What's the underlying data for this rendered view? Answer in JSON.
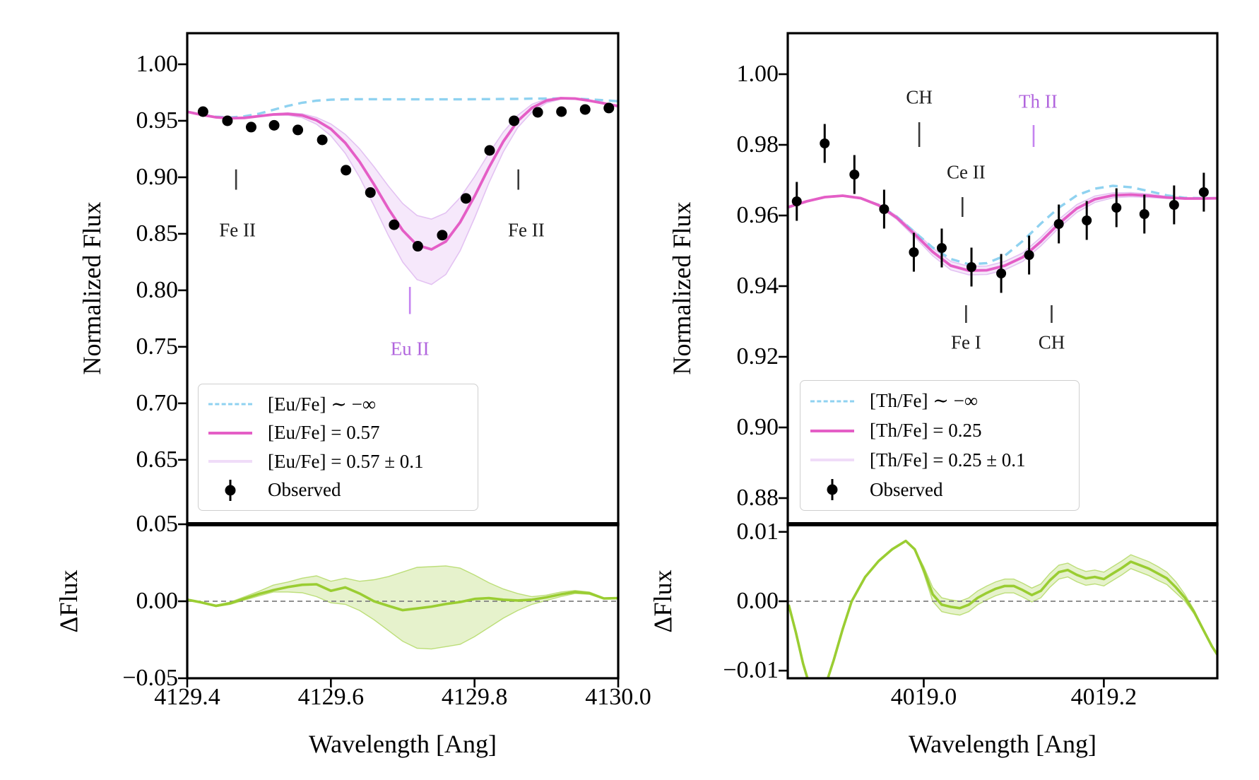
{
  "figure": {
    "background": "#ffffff"
  },
  "colors": {
    "no_element_line": "#8fd2f0",
    "best_fit_line": "#e45ec6",
    "band_fill": "#f6e8fb",
    "band_edge": "#e3c2f2",
    "observed": "#000000",
    "residual_line": "#9ACD32",
    "residual_fill": "rgba(154,205,50,0.25)",
    "zero_line": "#808080",
    "violet_annotation": "#b165dd"
  },
  "chart_data": [
    {
      "type": "line",
      "xlabel": "Wavelength [Ang]",
      "ylabel_main": "Normalized Flux",
      "ylabel_residual": "ΔFlux",
      "legend_position": "lower left",
      "xlim": [
        4129.4,
        4130.0
      ],
      "ylim_main": [
        0.593,
        1.0275
      ],
      "ylim_residual": [
        -0.05,
        0.05
      ],
      "x_ticks": [
        {
          "v": 4129.4,
          "label": "4129.4"
        },
        {
          "v": 4129.6,
          "label": "4129.6"
        },
        {
          "v": 4129.8,
          "label": "4129.8"
        },
        {
          "v": 4130.0,
          "label": "4130.0"
        }
      ],
      "y_ticks_main": [
        {
          "v": 1.0,
          "label": "1.00"
        },
        {
          "v": 0.95,
          "label": "0.95"
        },
        {
          "v": 0.9,
          "label": "0.90"
        },
        {
          "v": 0.85,
          "label": "0.85"
        },
        {
          "v": 0.8,
          "label": "0.80"
        },
        {
          "v": 0.75,
          "label": "0.75"
        },
        {
          "v": 0.7,
          "label": "0.70"
        },
        {
          "v": 0.65,
          "label": "0.65"
        }
      ],
      "y_ticks_residual": [
        {
          "v": 0.05,
          "label": "0.05"
        },
        {
          "v": 0.0,
          "label": "0.00"
        },
        {
          "v": -0.05,
          "label": "−0.05"
        }
      ],
      "legend": [
        {
          "label": "[Eu/Fe] ∼ −∞",
          "style": "dashed"
        },
        {
          "label": "[Eu/Fe] = 0.57",
          "style": "solid"
        },
        {
          "label": "[Eu/Fe] = 0.57 ± 0.1",
          "style": "band"
        },
        {
          "label": "Observed",
          "style": "marker"
        }
      ],
      "annotations": [
        {
          "label": "Fe II",
          "x": 4129.47,
          "label_y": 0.853,
          "tick_x": 4129.468,
          "tick_y1": 0.907,
          "tick_y2": 0.889,
          "color": "#1c1c1c",
          "tick_color": "#3a3a3a"
        },
        {
          "label": "Eu II",
          "x": 4129.71,
          "label_y": 0.748,
          "tick_x": 4129.71,
          "tick_y1": 0.803,
          "tick_y2": 0.779,
          "color": "#b165dd",
          "tick_color": "#c584f0"
        },
        {
          "label": "Fe II",
          "x": 4129.872,
          "label_y": 0.853,
          "tick_x": 4129.861,
          "tick_y1": 0.907,
          "tick_y2": 0.889,
          "color": "#1c1c1c",
          "tick_color": "#3a3a3a"
        }
      ],
      "series": {
        "model_x": [
          4129.4,
          4129.42,
          4129.44,
          4129.46,
          4129.48,
          4129.5,
          4129.52,
          4129.54,
          4129.56,
          4129.58,
          4129.6,
          4129.62,
          4129.64,
          4129.66,
          4129.68,
          4129.7,
          4129.72,
          4129.74,
          4129.76,
          4129.78,
          4129.8,
          4129.82,
          4129.84,
          4129.86,
          4129.88,
          4129.9,
          4129.92,
          4129.94,
          4129.96,
          4129.98,
          4130.0
        ],
        "no_element_y": [
          0.958,
          0.9555,
          0.9536,
          0.953,
          0.954,
          0.9563,
          0.9597,
          0.9632,
          0.966,
          0.9678,
          0.9687,
          0.969,
          0.9691,
          0.9691,
          0.969,
          0.969,
          0.969,
          0.969,
          0.969,
          0.969,
          0.9691,
          0.9692,
          0.9693,
          0.9694,
          0.9696,
          0.9697,
          0.9698,
          0.9696,
          0.969,
          0.9682,
          0.9673
        ],
        "best_fit_y": [
          0.958,
          0.9553,
          0.9531,
          0.9522,
          0.9526,
          0.9541,
          0.9556,
          0.9561,
          0.9548,
          0.9505,
          0.9428,
          0.9305,
          0.9138,
          0.8938,
          0.8722,
          0.853,
          0.84,
          0.8362,
          0.8432,
          0.8602,
          0.8832,
          0.9086,
          0.9316,
          0.9498,
          0.9615,
          0.9678,
          0.97,
          0.9697,
          0.9678,
          0.9654,
          0.963
        ],
        "band_upper_y": [
          0.958,
          0.9554,
          0.9533,
          0.9525,
          0.953,
          0.9546,
          0.9562,
          0.957,
          0.9562,
          0.953,
          0.9472,
          0.938,
          0.9252,
          0.9094,
          0.8922,
          0.8768,
          0.8662,
          0.863,
          0.8686,
          0.882,
          0.9005,
          0.9212,
          0.94,
          0.9548,
          0.9646,
          0.9693,
          0.9706,
          0.9699,
          0.9679,
          0.9654,
          0.963
        ],
        "band_lower_y": [
          0.958,
          0.9552,
          0.9529,
          0.9519,
          0.9522,
          0.9536,
          0.9549,
          0.955,
          0.9528,
          0.947,
          0.9368,
          0.9212,
          0.9,
          0.875,
          0.8485,
          0.825,
          0.8095,
          0.8052,
          0.814,
          0.835,
          0.864,
          0.895,
          0.9225,
          0.944,
          0.9578,
          0.9658,
          0.9692,
          0.9694,
          0.9677,
          0.9654,
          0.963
        ],
        "observed_x": [
          4129.422,
          4129.456,
          4129.489,
          4129.521,
          4129.554,
          4129.588,
          4129.621,
          4129.655,
          4129.688,
          4129.721,
          4129.755,
          4129.788,
          4129.821,
          4129.855,
          4129.888,
          4129.921,
          4129.954,
          4129.987
        ],
        "observed_y": [
          0.9581,
          0.95,
          0.9444,
          0.946,
          0.9419,
          0.9331,
          0.9063,
          0.8865,
          0.858,
          0.839,
          0.8488,
          0.8813,
          0.9238,
          0.95,
          0.9575,
          0.9581,
          0.96,
          0.9613
        ],
        "observed_yerr": 0.003
      },
      "residual": {
        "x": [
          4129.4,
          4129.42,
          4129.44,
          4129.46,
          4129.48,
          4129.5,
          4129.52,
          4129.54,
          4129.56,
          4129.58,
          4129.6,
          4129.62,
          4129.64,
          4129.66,
          4129.68,
          4129.7,
          4129.72,
          4129.74,
          4129.76,
          4129.78,
          4129.8,
          4129.82,
          4129.84,
          4129.86,
          4129.88,
          4129.9,
          4129.92,
          4129.94,
          4129.96,
          4129.98,
          4130.0
        ],
        "line_y": [
          0.001,
          -0.0008,
          -0.003,
          -0.0013,
          0.0018,
          0.0048,
          0.0072,
          0.0092,
          0.0107,
          0.011,
          0.0068,
          0.009,
          0.005,
          0.0,
          -0.003,
          -0.0058,
          -0.0047,
          -0.0035,
          -0.0018,
          -0.0005,
          0.0015,
          0.002,
          0.001,
          0.0005,
          0.001,
          0.0025,
          0.0045,
          0.006,
          0.0052,
          0.0018,
          0.002
        ],
        "band_upper_y": [
          0.0012,
          -0.0005,
          -0.0025,
          -0.0005,
          0.003,
          0.0065,
          0.0105,
          0.0125,
          0.015,
          0.0165,
          0.013,
          0.015,
          0.013,
          0.014,
          0.016,
          0.019,
          0.022,
          0.0225,
          0.023,
          0.0215,
          0.017,
          0.012,
          0.008,
          0.005,
          0.003,
          0.004,
          0.006,
          0.007,
          0.006,
          0.0022,
          0.0022
        ],
        "band_lower_y": [
          0.0008,
          -0.0012,
          -0.0035,
          -0.002,
          0.0008,
          0.0035,
          0.006,
          0.006,
          0.0055,
          0.003,
          -0.001,
          -0.002,
          -0.006,
          -0.012,
          -0.019,
          -0.026,
          -0.0305,
          -0.031,
          -0.0295,
          -0.028,
          -0.023,
          -0.017,
          -0.011,
          -0.006,
          -0.002,
          0.0005,
          0.003,
          0.005,
          0.0045,
          0.0014,
          0.0018
        ]
      }
    },
    {
      "type": "line",
      "xlabel": "Wavelength [Ang]",
      "ylabel_main": "Normalized Flux",
      "ylabel_residual": "ΔFlux",
      "legend_position": "lower left",
      "xlim": [
        4018.849,
        4019.326
      ],
      "ylim_main": [
        0.8726,
        1.0116
      ],
      "ylim_residual": [
        -0.0111,
        0.0111
      ],
      "x_ticks": [
        {
          "v": 4019.0,
          "label": "4019.0"
        },
        {
          "v": 4019.2,
          "label": "4019.2"
        }
      ],
      "y_ticks_main": [
        {
          "v": 1.0,
          "label": "1.00"
        },
        {
          "v": 0.98,
          "label": "0.98"
        },
        {
          "v": 0.96,
          "label": "0.96"
        },
        {
          "v": 0.94,
          "label": "0.94"
        },
        {
          "v": 0.92,
          "label": "0.92"
        },
        {
          "v": 0.9,
          "label": "0.90"
        },
        {
          "v": 0.88,
          "label": "0.88"
        }
      ],
      "y_ticks_residual": [
        {
          "v": 0.01,
          "label": "0.01"
        },
        {
          "v": 0.0,
          "label": "0.00"
        },
        {
          "v": -0.01,
          "label": "−0.01"
        }
      ],
      "legend": [
        {
          "label": "[Th/Fe] ∼ −∞",
          "style": "dashed"
        },
        {
          "label": "[Th/Fe] = 0.25",
          "style": "solid"
        },
        {
          "label": "[Th/Fe] = 0.25 ± 0.1",
          "style": "band"
        },
        {
          "label": "Observed",
          "style": "marker"
        }
      ],
      "annotations": [
        {
          "label": "CH",
          "x": 4018.995,
          "label_y": 0.9935,
          "tick_x": 4018.995,
          "tick_y1": 0.9864,
          "tick_y2": 0.9794,
          "color": "#1c1c1c",
          "tick_color": "#3a3a3a"
        },
        {
          "label": "Ce II",
          "x": 4019.047,
          "label_y": 0.9722,
          "tick_x": 4019.043,
          "tick_y1": 0.9652,
          "tick_y2": 0.9596,
          "color": "#1c1c1c",
          "tick_color": "#3a3a3a"
        },
        {
          "label": "Th II",
          "x": 4019.127,
          "label_y": 0.9922,
          "tick_x": 4019.122,
          "tick_y1": 0.9856,
          "tick_y2": 0.9794,
          "color": "#b165dd",
          "tick_color": "#c584f0"
        },
        {
          "label": "Fe I",
          "x": 4019.047,
          "label_y": 0.924,
          "tick_x": 4019.047,
          "tick_y1": 0.9346,
          "tick_y2": 0.9296,
          "color": "#1c1c1c",
          "tick_color": "#3a3a3a"
        },
        {
          "label": "CH",
          "x": 4019.142,
          "label_y": 0.924,
          "tick_x": 4019.142,
          "tick_y1": 0.9346,
          "tick_y2": 0.9296,
          "color": "#1c1c1c",
          "tick_color": "#3a3a3a"
        }
      ],
      "series": {
        "model_x": [
          4018.85,
          4018.87,
          4018.89,
          4018.91,
          4018.93,
          4018.95,
          4018.97,
          4018.99,
          4019.01,
          4019.03,
          4019.05,
          4019.07,
          4019.09,
          4019.11,
          4019.13,
          4019.15,
          4019.17,
          4019.19,
          4019.21,
          4019.23,
          4019.25,
          4019.27,
          4019.29,
          4019.31,
          4019.33
        ],
        "no_element_y": [
          0.9624,
          0.964,
          0.9652,
          0.9656,
          0.9649,
          0.963,
          0.9597,
          0.9553,
          0.9509,
          0.9477,
          0.9462,
          0.9465,
          0.9486,
          0.9528,
          0.9577,
          0.9622,
          0.9657,
          0.9676,
          0.9684,
          0.968,
          0.9669,
          0.9657,
          0.965,
          0.9649,
          0.9649
        ],
        "best_fit_y": [
          0.9624,
          0.964,
          0.9652,
          0.9656,
          0.9649,
          0.9629,
          0.9594,
          0.9547,
          0.9497,
          0.9458,
          0.9444,
          0.9445,
          0.9458,
          0.9482,
          0.9526,
          0.9577,
          0.962,
          0.9646,
          0.9657,
          0.9659,
          0.9656,
          0.9651,
          0.9648,
          0.9648,
          0.9649
        ],
        "band_upper_y": [
          0.9624,
          0.964,
          0.9652,
          0.9656,
          0.965,
          0.9632,
          0.9599,
          0.9555,
          0.9508,
          0.947,
          0.9456,
          0.9457,
          0.947,
          0.9494,
          0.9538,
          0.9589,
          0.9631,
          0.9655,
          0.9664,
          0.9665,
          0.9661,
          0.9654,
          0.9649,
          0.9648,
          0.9649
        ],
        "band_lower_y": [
          0.9624,
          0.964,
          0.9652,
          0.9656,
          0.9648,
          0.9626,
          0.9589,
          0.9539,
          0.9486,
          0.9446,
          0.9432,
          0.9433,
          0.9446,
          0.947,
          0.9514,
          0.9565,
          0.9609,
          0.9637,
          0.965,
          0.9653,
          0.9651,
          0.9648,
          0.9647,
          0.9648,
          0.9649
        ],
        "observed_x": [
          4018.859,
          4018.89,
          4018.923,
          4018.956,
          4018.989,
          4019.02,
          4019.053,
          4019.086,
          4019.117,
          4019.15,
          4019.181,
          4019.214,
          4019.245,
          4019.278,
          4019.311
        ],
        "observed_y": [
          0.964,
          0.9804,
          0.9716,
          0.9618,
          0.9496,
          0.9508,
          0.9454,
          0.9436,
          0.9488,
          0.9576,
          0.9586,
          0.9622,
          0.9604,
          0.963,
          0.9666
        ],
        "observed_yerr": 0.0055
      },
      "residual": {
        "x": [
          4018.85,
          4018.858,
          4018.866,
          4018.874,
          4018.882,
          4018.89,
          4018.9,
          4018.91,
          4018.92,
          4018.935,
          4018.95,
          4018.965,
          4018.98,
          4018.99,
          4019.0,
          4019.01,
          4019.02,
          4019.03,
          4019.04,
          4019.05,
          4019.06,
          4019.07,
          4019.08,
          4019.09,
          4019.1,
          4019.11,
          4019.12,
          4019.13,
          4019.14,
          4019.15,
          4019.16,
          4019.17,
          4019.18,
          4019.19,
          4019.2,
          4019.21,
          4019.22,
          4019.23,
          4019.24,
          4019.25,
          4019.26,
          4019.27,
          4019.28,
          4019.29,
          4019.3,
          4019.31,
          4019.32,
          4019.33
        ],
        "line_y": [
          -0.0005,
          -0.0045,
          -0.009,
          -0.0125,
          -0.014,
          -0.0125,
          -0.0085,
          -0.004,
          0.0,
          0.0035,
          0.0058,
          0.0075,
          0.0087,
          0.0075,
          0.0045,
          0.001,
          -0.0005,
          -0.0008,
          -0.001,
          -0.0005,
          0.0005,
          0.0012,
          0.0018,
          0.0022,
          0.0022,
          0.0016,
          0.0009,
          0.0015,
          0.003,
          0.0042,
          0.0045,
          0.0038,
          0.0033,
          0.0035,
          0.0032,
          0.004,
          0.0048,
          0.0057,
          0.0052,
          0.0047,
          0.004,
          0.0033,
          0.002,
          0.0005,
          -0.0015,
          -0.004,
          -0.0065,
          -0.0085
        ],
        "band_upper_y": [
          -0.0005,
          -0.0045,
          -0.009,
          -0.0125,
          -0.014,
          -0.0125,
          -0.0085,
          -0.004,
          0.0,
          0.0035,
          0.0058,
          0.0075,
          0.0087,
          0.0075,
          0.005,
          0.002,
          0.0005,
          0.0002,
          0.0,
          0.0005,
          0.0015,
          0.0022,
          0.0028,
          0.0032,
          0.0032,
          0.0026,
          0.0019,
          0.0025,
          0.004,
          0.0052,
          0.0055,
          0.0048,
          0.0043,
          0.0045,
          0.0042,
          0.005,
          0.0058,
          0.0067,
          0.0062,
          0.0057,
          0.005,
          0.0042,
          0.0028,
          0.001,
          -0.0012,
          -0.0038,
          -0.0064,
          -0.0085
        ],
        "band_lower_y": [
          -0.0005,
          -0.0045,
          -0.009,
          -0.0125,
          -0.014,
          -0.0125,
          -0.0085,
          -0.004,
          0.0,
          0.0035,
          0.0058,
          0.0075,
          0.0087,
          0.0075,
          0.004,
          0.0,
          -0.0015,
          -0.0018,
          -0.002,
          -0.0015,
          -0.0005,
          0.0002,
          0.0008,
          0.0012,
          0.0012,
          0.0006,
          -0.0001,
          0.0005,
          0.002,
          0.0032,
          0.0035,
          0.0028,
          0.0023,
          0.0025,
          0.0022,
          0.003,
          0.0038,
          0.0047,
          0.0042,
          0.0037,
          0.003,
          0.0024,
          0.0012,
          0.0,
          -0.0018,
          -0.0042,
          -0.0066,
          -0.0085
        ]
      }
    }
  ]
}
